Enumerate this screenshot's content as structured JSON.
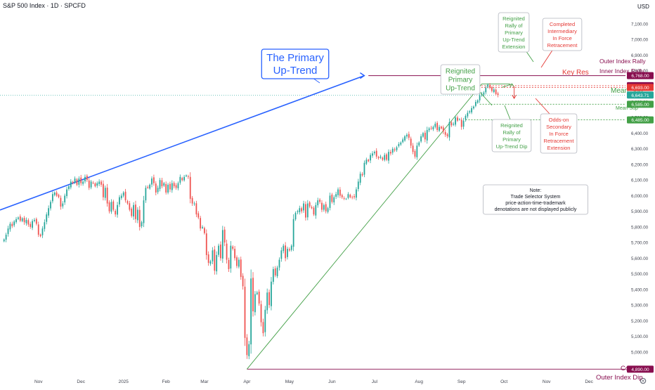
{
  "header": {
    "title": "S&P 500 Index · 1D · SPCFD"
  },
  "price_scale": {
    "currency": "USD",
    "settings_icon": "gear-icon"
  },
  "annotations": {
    "primary_uptrend": [
      "The Primary",
      "Up-Trend"
    ],
    "reignited_primary": [
      "Reignited",
      "Primary",
      "Up-Trend"
    ],
    "rally_extension": [
      "Reignited",
      "Rally of",
      "Primary",
      "Up-Trend",
      "Extension"
    ],
    "completed_intermediary": [
      "Completed",
      "Intermediary",
      "In Force",
      "Retracement"
    ],
    "reignited_rally_lower": [
      "Reignited",
      "Rally of",
      "Primary",
      "Up-Trend Dip"
    ],
    "odds_on": [
      "Odds-on",
      "Secondary",
      "In Force",
      "Retracement",
      "Extension"
    ],
    "note": [
      "Note:",
      "Trade Selector System",
      "price-action-time-trademark",
      "denotations are not displayed publicly"
    ],
    "key_res": "Key Res",
    "mean_sup": "Mean Sup",
    "mean_sup_small": "Mean Sup",
    "outer_index_rally": "Outer Index Rally",
    "inner_index_rally": "Inner Index Rally",
    "comp": "Comp",
    "outer_index_dip": "Outer Index Dip"
  },
  "price_tags": [
    {
      "label": "6,768.00",
      "value": 6768,
      "color": "#880e4f"
    },
    {
      "label": "6,704.00",
      "value": 6704,
      "color": "#880e4f"
    },
    {
      "label": "6,693.00",
      "value": 6693,
      "color": "#e53935"
    },
    {
      "label": "6,643.71",
      "value": 6643.71,
      "color": "#26a69a"
    },
    {
      "label": "6,585.00",
      "value": 6585,
      "color": "#43a047"
    },
    {
      "label": "6,485.00",
      "value": 6485,
      "color": "#43a047"
    },
    {
      "label": "4,890.00",
      "value": 4890,
      "color": "#880e4f"
    }
  ],
  "colors": {
    "up": "#26a69a",
    "down": "#ef5350",
    "blue": "#2962ff",
    "green": "#43a047",
    "red": "#e53935",
    "maroon": "#880e4f"
  },
  "chart_data": {
    "type": "candlestick",
    "title": "S&P 500 Index · 1D · SPCFD",
    "y_ticks": [
      5000,
      5100,
      5200,
      5300,
      5400,
      5500,
      5600,
      5700,
      5800,
      5900,
      6000,
      6100,
      6200,
      6300,
      6400,
      6500,
      6600,
      6700,
      6800,
      6900,
      7000,
      7100
    ],
    "y_tick_labels": [
      "5,000.00",
      "5,100.00",
      "5,200.00",
      "5,300.00",
      "5,400.00",
      "5,500.00",
      "5,600.00",
      "5,700.00",
      "5,800.00",
      "5,900.00",
      "6,000.00",
      "6,100.00",
      "6,200.00",
      "6,300.00",
      "6,400.00",
      "6,500.00",
      "6,600.00",
      "6,700.00",
      "6,800.00",
      "6,900.00",
      "7,000.00",
      "7,100.00"
    ],
    "ylim": [
      4860,
      7180
    ],
    "x_ticks": [
      {
        "label": "Nov",
        "i": 17
      },
      {
        "label": "Dec",
        "i": 38
      },
      {
        "label": "2025",
        "i": 59
      },
      {
        "label": "Feb",
        "i": 80
      },
      {
        "label": "Mar",
        "i": 99
      },
      {
        "label": "Apr",
        "i": 120
      },
      {
        "label": "May",
        "i": 141
      },
      {
        "label": "Jun",
        "i": 162
      },
      {
        "label": "Jul",
        "i": 183
      },
      {
        "label": "Aug",
        "i": 205
      },
      {
        "label": "Sep",
        "i": 226
      },
      {
        "label": "Oct",
        "i": 247
      },
      {
        "label": "Nov",
        "i": 268
      },
      {
        "label": "Dec",
        "i": 289
      }
    ],
    "x_range": [
      -2,
      307
    ],
    "closes": [
      5720,
      5750,
      5790,
      5820,
      5805,
      5835,
      5850,
      5860,
      5840,
      5855,
      5830,
      5845,
      5815,
      5800,
      5838,
      5845,
      5820,
      5750,
      5740,
      5790,
      5830,
      5880,
      5920,
      5960,
      6010,
      6020,
      6000,
      5990,
      5930,
      5950,
      6000,
      6040,
      6060,
      6090,
      6080,
      6110,
      6070,
      6110,
      6080,
      6090,
      6120,
      6100,
      6050,
      6090,
      6080,
      6060,
      6080,
      6090,
      6070,
      5990,
      6050,
      5950,
      5900,
      5960,
      5910,
      5880,
      5940,
      5990,
      6000,
      6020,
      5970,
      5950,
      5910,
      5870,
      5940,
      5850,
      5910,
      5800,
      5830,
      5970,
      6050,
      6050,
      6070,
      6110,
      6080,
      6020,
      6050,
      6100,
      6060,
      6080,
      6020,
      6070,
      6040,
      6080,
      6060,
      6050,
      6080,
      6120,
      6100,
      6120,
      6130,
      6120,
      5980,
      5950,
      5950,
      5880,
      5860,
      5790,
      5800,
      5760,
      5620,
      5570,
      5580,
      5650,
      5520,
      5620,
      5680,
      5600,
      5780,
      5700,
      5590,
      5530,
      5680,
      5660,
      5600,
      5550,
      5590,
      5480,
      5420,
      5090,
      4980,
      5050,
      5470,
      5260,
      5370,
      5380,
      5310,
      5190,
      5120,
      5270,
      5380,
      5300,
      5450,
      5530,
      5490,
      5540,
      5590,
      5650,
      5680,
      5600,
      5660,
      5650,
      5680,
      5850,
      5890,
      5900,
      5920,
      5900,
      5950,
      5860,
      5950,
      5930,
      5920,
      5880,
      5940,
      5970,
      5960,
      5910,
      5940,
      5900,
      5920,
      6000,
      5960,
      5990,
      6010,
      6040,
      6000,
      5990,
      5980,
      5980,
      6010,
      5990,
      5990,
      5990,
      6040,
      6090,
      6140,
      6130,
      6210,
      6230,
      6220,
      6260,
      6270,
      6280,
      6250,
      6240,
      6250,
      6230,
      6260,
      6230,
      6280,
      6270,
      6300,
      6290,
      6310,
      6330,
      6340,
      6360,
      6380,
      6390,
      6370,
      6320,
      6280,
      6250,
      6320,
      6340,
      6380,
      6400,
      6360,
      6420,
      6430,
      6430,
      6440,
      6460,
      6420,
      6440,
      6430,
      6410,
      6390,
      6380,
      6470,
      6450,
      6460,
      6500,
      6480,
      6490,
      6440,
      6480,
      6510,
      6530,
      6540,
      6560,
      6570,
      6600,
      6610,
      6640,
      6650,
      6660,
      6690,
      6710,
      6690,
      6670,
      6680,
      6650,
      6643.71
    ]
  }
}
